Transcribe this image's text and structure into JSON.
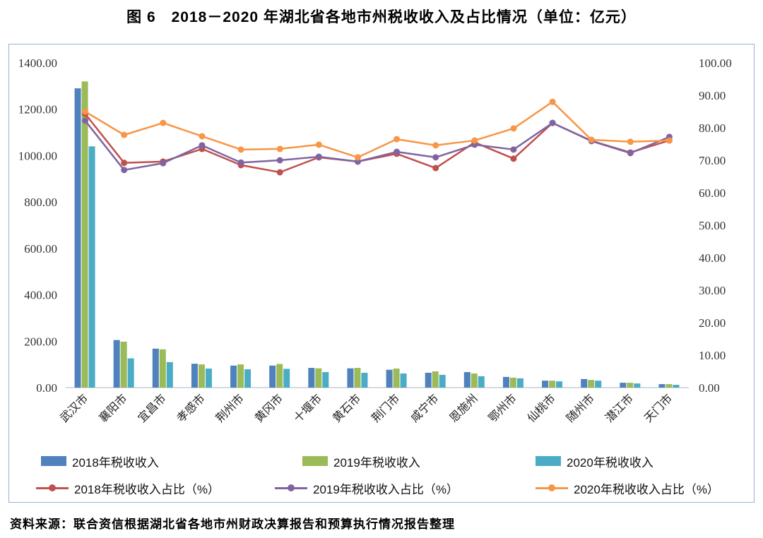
{
  "title": "图 6　2018－2020 年湖北省各地市州税收收入及占比情况（单位：亿元）",
  "source": "资料来源：联合资信根据湖北省各地市州财政决算报告和预算执行情况报告整理",
  "chart_data": {
    "type": "bar+line",
    "categories": [
      "武汉市",
      "襄阳市",
      "宜昌市",
      "孝感市",
      "荆州市",
      "黄冈市",
      "十堰市",
      "黄石市",
      "荆门市",
      "咸宁市",
      "恩施州",
      "鄂州市",
      "仙桃市",
      "随州市",
      "潜江市",
      "天门市"
    ],
    "bar_series": [
      {
        "name": "2018年税收收入",
        "color": "#4F81BD",
        "values": [
          1290,
          205,
          168,
          103,
          95,
          95,
          85,
          83,
          77,
          64,
          67,
          46,
          30,
          37,
          21,
          15
        ]
      },
      {
        "name": "2019年税收收入",
        "color": "#9BBB59",
        "values": [
          1320,
          198,
          165,
          100,
          100,
          102,
          83,
          85,
          82,
          70,
          61,
          43,
          30,
          33,
          21,
          15
        ]
      },
      {
        "name": "2020年税收收入",
        "color": "#4BACC6",
        "values": [
          1040,
          126,
          110,
          82,
          79,
          81,
          67,
          64,
          61,
          55,
          49,
          40,
          27,
          30,
          18,
          12
        ]
      }
    ],
    "line_series": [
      {
        "name": "2018年税收收入占比（%）",
        "color": "#C0504D",
        "values": [
          84.3,
          69.2,
          69.6,
          73.5,
          68.5,
          66.3,
          70.9,
          69.6,
          72.0,
          67.6,
          75.5,
          70.5,
          81.5,
          76.0,
          72.4,
          76.1
        ]
      },
      {
        "name": "2019年税收收入占比（%）",
        "color": "#8064A2",
        "values": [
          82.2,
          67.0,
          69.1,
          74.6,
          69.3,
          70.0,
          71.1,
          69.6,
          72.6,
          70.9,
          74.8,
          73.3,
          81.5,
          75.9,
          72.2,
          77.2
        ]
      },
      {
        "name": "2020年税收收入占比（%）",
        "color": "#F79646",
        "values": [
          85.0,
          77.8,
          81.5,
          77.4,
          73.3,
          73.5,
          74.8,
          70.9,
          76.5,
          74.6,
          76.1,
          79.8,
          88.0,
          76.3,
          75.7,
          76.1
        ]
      }
    ],
    "left_axis": {
      "min": 0,
      "max": 1400,
      "step": 200
    },
    "right_axis": {
      "min": 0,
      "max": 100,
      "step": 10
    },
    "legend_position": "bottom",
    "grid": "off"
  }
}
